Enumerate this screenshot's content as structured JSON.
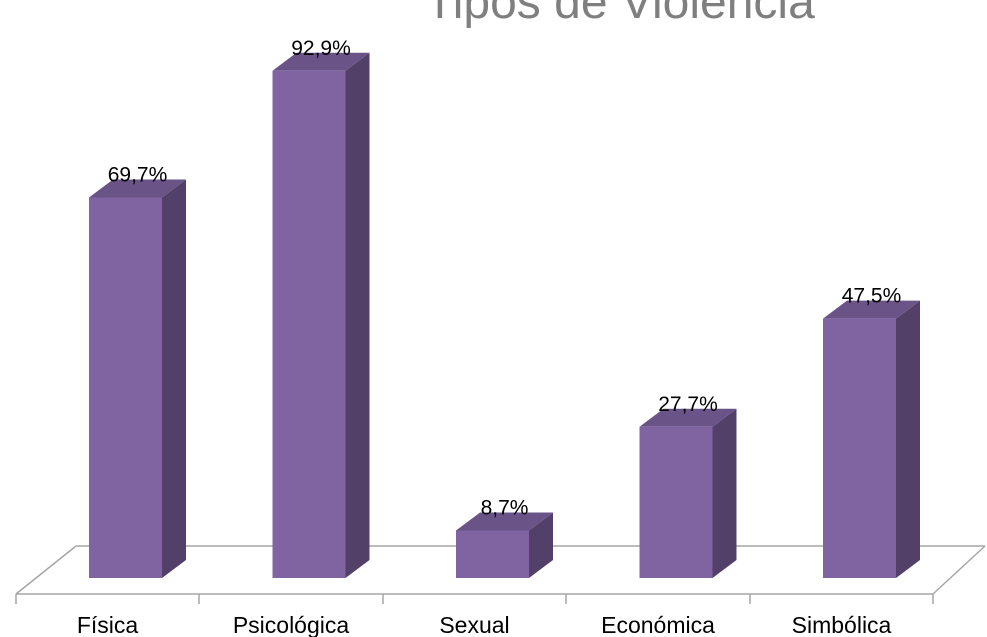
{
  "chart_data": {
    "type": "bar",
    "title": "Tipos de Violencia",
    "categories": [
      "Física",
      "Psicológica",
      "Sexual",
      "Económica",
      "Simbólica"
    ],
    "values": [
      69.7,
      92.9,
      8.7,
      27.7,
      47.5
    ],
    "value_labels": [
      "69,7%",
      "92,9%",
      "8,7%",
      "27,7%",
      "47,5%"
    ],
    "xlabel": "",
    "ylabel": "",
    "ylim": [
      0,
      100
    ],
    "grid": false,
    "legend": "none",
    "style": "3d-column"
  },
  "colors": {
    "bar_front": "#8064A2",
    "bar_side": "#524068",
    "bar_top": "#6A5387",
    "floor_line": "#A6A6A6",
    "title": "#7F7F7F"
  }
}
